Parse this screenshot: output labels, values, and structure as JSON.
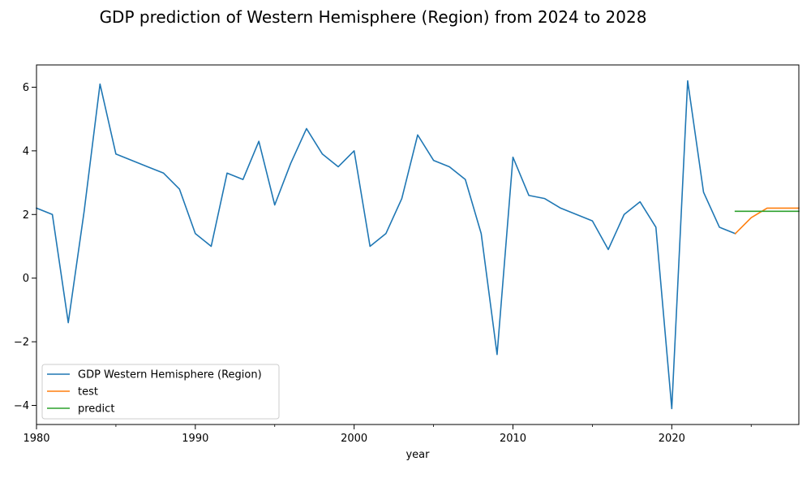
{
  "chart_data": {
    "type": "line",
    "title": "GDP prediction of Western Hemisphere (Region) from 2024 to 2028",
    "xlabel": "year",
    "ylabel": "",
    "xlim": [
      1980,
      2028
    ],
    "ylim": [
      -4.6,
      6.7
    ],
    "x_ticks": [
      1980,
      1990,
      2000,
      2010,
      2020
    ],
    "y_ticks": [
      -4,
      -2,
      0,
      2,
      4,
      6
    ],
    "grid": false,
    "legend_position": "lower-left",
    "series": [
      {
        "name": "GDP Western Hemisphere (Region)",
        "color": "#1f77b4",
        "x": [
          1980,
          1981,
          1982,
          1983,
          1984,
          1985,
          1986,
          1987,
          1988,
          1989,
          1990,
          1991,
          1992,
          1993,
          1994,
          1995,
          1996,
          1997,
          1998,
          1999,
          2000,
          2001,
          2002,
          2003,
          2004,
          2005,
          2006,
          2007,
          2008,
          2009,
          2010,
          2011,
          2012,
          2013,
          2014,
          2015,
          2016,
          2017,
          2018,
          2019,
          2020,
          2021,
          2022,
          2023,
          2024
        ],
        "y": [
          2.2,
          2.0,
          -1.4,
          2.1,
          6.1,
          3.9,
          3.7,
          3.5,
          3.3,
          2.8,
          1.4,
          1.0,
          3.3,
          3.1,
          4.3,
          2.3,
          3.6,
          4.7,
          3.9,
          3.5,
          4.0,
          1.0,
          1.4,
          2.5,
          4.5,
          3.7,
          3.5,
          3.1,
          1.4,
          -2.4,
          3.8,
          2.6,
          2.5,
          2.2,
          2.0,
          1.8,
          0.9,
          2.0,
          2.4,
          1.6,
          -4.1,
          6.2,
          2.7,
          1.6,
          1.4
        ]
      },
      {
        "name": "test",
        "color": "#ff7f0e",
        "x": [
          2024,
          2025,
          2026,
          2027,
          2028
        ],
        "y": [
          1.4,
          1.9,
          2.2,
          2.2,
          2.2
        ]
      },
      {
        "name": "predict",
        "color": "#2ca02c",
        "x": [
          2024,
          2025,
          2026,
          2027,
          2028
        ],
        "y": [
          2.1,
          2.1,
          2.1,
          2.1,
          2.1
        ]
      }
    ]
  }
}
